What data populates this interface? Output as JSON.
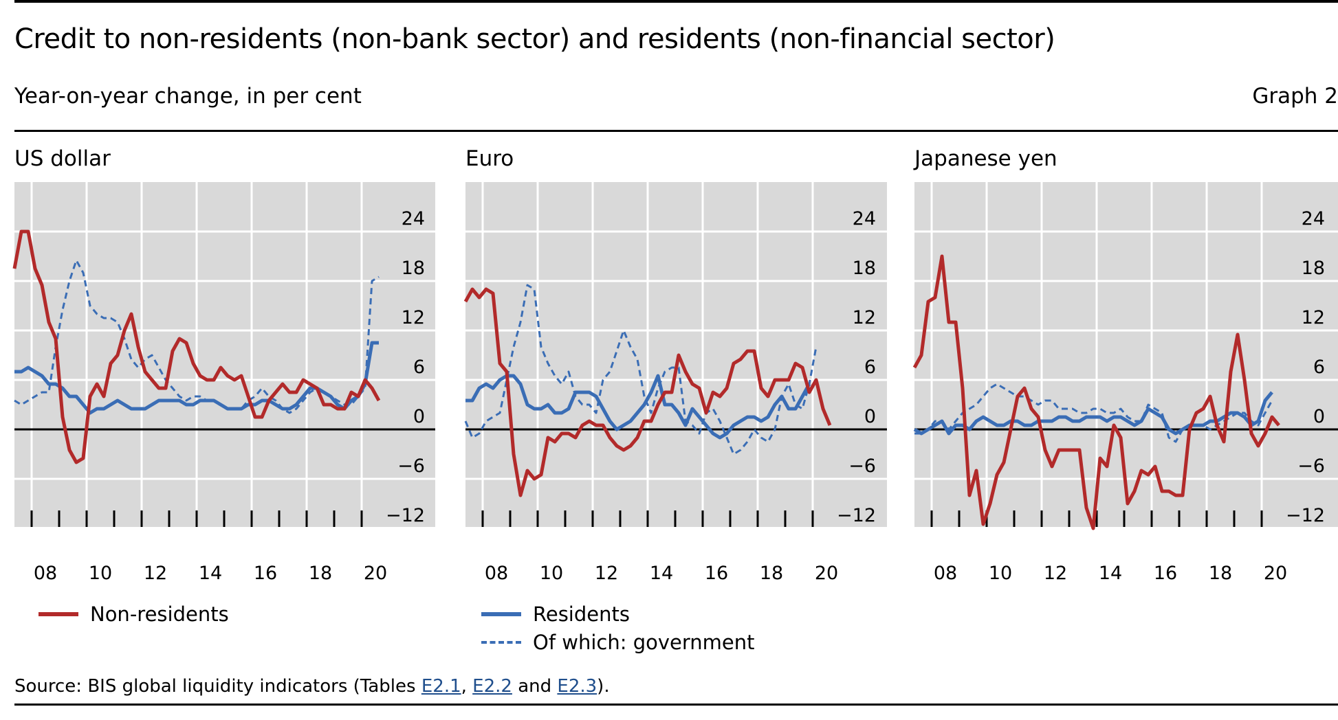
{
  "header": {
    "title": "Credit to non-residents (non-bank sector) and residents (non-financial sector)",
    "subtitle": "Year-on-year change, in per cent",
    "graph_number": "Graph 2"
  },
  "legend": {
    "non_residents": "Non-residents",
    "residents": "Residents",
    "government": "Of which: government"
  },
  "source": {
    "prefix": "Source: BIS global liquidity indicators (Tables ",
    "link1": "E2.1",
    "sep1": ", ",
    "link2": "E2.2",
    "sep2": " and ",
    "link3": "E2.3",
    "suffix": ")."
  },
  "colors": {
    "non_residents": "#b22a2a",
    "residents": "#3a6db5",
    "panel_background": "#d9d9d9",
    "gridline": "#ffffff"
  },
  "chart_data": [
    {
      "type": "line",
      "title": "US dollar",
      "xlabel": "",
      "ylabel": "Year-on-year change, in per cent",
      "x_start": 2007.375,
      "x_step": 0.25,
      "xlim": [
        2007.375,
        2022.65
      ],
      "ylim": [
        -12,
        30
      ],
      "x_ticks": [
        "08",
        "10",
        "12",
        "14",
        "16",
        "18",
        "20"
      ],
      "y_ticks": [
        24,
        18,
        12,
        6,
        0,
        -6,
        -12
      ],
      "series": [
        {
          "name": "Non-residents",
          "style": "solid",
          "values": [
            19.5,
            24,
            24,
            19.5,
            17.5,
            13,
            11,
            1.5,
            -2.5,
            -4,
            -3.5,
            4,
            5.5,
            4,
            8,
            9,
            12,
            14,
            10,
            7,
            6,
            5,
            5,
            9.5,
            11,
            10.5,
            8,
            6.5,
            6,
            6,
            7.5,
            6.5,
            6,
            6.5,
            4,
            1.5,
            1.5,
            3.5,
            4.5,
            5.5,
            4.5,
            4.5,
            6,
            5.5,
            5,
            3,
            3,
            2.5,
            2.5,
            4.5,
            4,
            6,
            5,
            3.5
          ]
        },
        {
          "name": "Residents",
          "style": "solid",
          "values": [
            7,
            7,
            7.5,
            7,
            6.5,
            5.5,
            5.5,
            5,
            4,
            4,
            3,
            2,
            2.5,
            2.5,
            3,
            3.5,
            3,
            2.5,
            2.5,
            2.5,
            3,
            3.5,
            3.5,
            3.5,
            3.5,
            3,
            3,
            3.5,
            3.5,
            3.5,
            3,
            2.5,
            2.5,
            2.5,
            3,
            3,
            3.5,
            3.5,
            3,
            2.5,
            2.5,
            3,
            4,
            5,
            5,
            4.5,
            4,
            3,
            2.5,
            3.5,
            4,
            5.5,
            10.5,
            10.5
          ]
        },
        {
          "name": "Of which: government",
          "style": "dashed",
          "values": [
            3.5,
            3,
            3.5,
            4,
            4.5,
            4.5,
            10,
            14.5,
            18,
            20.5,
            19,
            15,
            14,
            13.5,
            13.5,
            13,
            11,
            8.5,
            7.5,
            8.5,
            9,
            7.5,
            6,
            5,
            4,
            3.5,
            4,
            4,
            3.5,
            3.5,
            3,
            2.5,
            2.5,
            2.5,
            3.5,
            4,
            5,
            4,
            3.5,
            2.5,
            2,
            2.5,
            3.5,
            4.5,
            5,
            4.5,
            4,
            3.5,
            3,
            3,
            4,
            5,
            18,
            18.5
          ]
        }
      ]
    },
    {
      "type": "line",
      "title": "Euro",
      "xlabel": "",
      "ylabel": "Year-on-year change, in per cent",
      "x_start": 2007.375,
      "x_step": 0.25,
      "xlim": [
        2007.375,
        2022.65
      ],
      "ylim": [
        -12,
        30
      ],
      "x_ticks": [
        "08",
        "10",
        "12",
        "14",
        "16",
        "18",
        "20"
      ],
      "y_ticks": [
        24,
        18,
        12,
        6,
        0,
        -6,
        -12
      ],
      "series": [
        {
          "name": "Non-residents",
          "style": "solid",
          "values": [
            15.5,
            17,
            16,
            17,
            16.5,
            8,
            7,
            -3,
            -8,
            -5,
            -6,
            -5.5,
            -1,
            -1.5,
            -0.5,
            -0.5,
            -1,
            0.5,
            1,
            0.5,
            0.5,
            -1,
            -2,
            -2.5,
            -2,
            -1,
            1,
            1,
            3,
            4.5,
            4.5,
            9,
            7,
            5.5,
            5,
            2,
            4.5,
            4,
            5,
            8,
            8.5,
            9.5,
            9.5,
            5,
            4,
            6,
            6,
            6,
            8,
            7.5,
            4.5,
            6,
            2.5,
            0.5
          ]
        },
        {
          "name": "Residents",
          "style": "solid",
          "values": [
            3.5,
            3.5,
            5,
            5.5,
            5,
            6,
            6.5,
            6.5,
            5.5,
            3,
            2.5,
            2.5,
            3,
            2,
            2,
            2.5,
            4.5,
            4.5,
            4.5,
            4,
            2.5,
            1,
            0,
            0.5,
            1,
            2,
            3,
            4.5,
            6.5,
            3,
            3,
            2,
            0.5,
            2.5,
            1.5,
            0.5,
            -0.5,
            -1,
            -0.5,
            0.5,
            1,
            1.5,
            1.5,
            1,
            1.5,
            3,
            4,
            2.5,
            2.5,
            4,
            5.5
          ]
        },
        {
          "name": "Of which: government",
          "style": "dashed",
          "values": [
            1,
            -1,
            -0.5,
            1,
            1.5,
            2,
            6,
            10,
            13,
            17.5,
            17,
            10,
            8,
            6.5,
            5.5,
            7,
            4,
            3,
            3,
            2,
            6,
            7,
            9.5,
            12,
            10,
            8.5,
            4,
            2,
            5,
            7,
            7.5,
            7.5,
            1,
            0.5,
            -0.5,
            2,
            2.5,
            1,
            -1,
            -3,
            -2.5,
            -1.5,
            0,
            -1,
            -1.5,
            0,
            4,
            5.5,
            3,
            2.5,
            5.5,
            10
          ]
        }
      ]
    },
    {
      "type": "line",
      "title": "Japanese yen",
      "xlabel": "",
      "ylabel": "Year-on-year change, in per cent",
      "x_start": 2007.375,
      "x_step": 0.25,
      "xlim": [
        2007.375,
        2022.65
      ],
      "ylim": [
        -12,
        30
      ],
      "x_ticks": [
        "08",
        "10",
        "12",
        "14",
        "16",
        "18",
        "20"
      ],
      "y_ticks": [
        24,
        18,
        12,
        6,
        0,
        -6,
        -12
      ],
      "series": [
        {
          "name": "Non-residents",
          "style": "solid",
          "values": [
            7.5,
            9,
            15.5,
            16,
            21,
            13,
            13,
            5,
            -8,
            -5,
            -11.5,
            -9,
            -5.5,
            -4,
            0,
            4,
            5,
            2.5,
            1.5,
            -2.5,
            -4.5,
            -2.5,
            -2.5,
            -2.5,
            -2.5,
            -9.5,
            -12,
            -3.5,
            -4.5,
            0.5,
            -1,
            -9,
            -7.5,
            -5,
            -5.5,
            -4.5,
            -7.5,
            -7.5,
            -8,
            -8,
            0,
            2,
            2.5,
            4,
            0.5,
            -1.5,
            7,
            11.5,
            6,
            -0.5,
            -2,
            -0.5,
            1.5,
            0.5
          ]
        },
        {
          "name": "Residents",
          "style": "solid",
          "values": [
            0,
            -0.5,
            0,
            0.5,
            1,
            -0.5,
            0.5,
            0.5,
            0,
            1,
            1.5,
            1,
            0.5,
            0.5,
            1,
            1,
            0.5,
            0.5,
            1,
            1,
            1,
            1.5,
            1.5,
            1,
            1,
            1.5,
            1.5,
            1.5,
            1,
            1.5,
            1.5,
            1,
            0.5,
            1,
            2.5,
            2,
            1.5,
            0,
            -0.5,
            0,
            0.5,
            0.5,
            0.5,
            1,
            1,
            1.5,
            2,
            2,
            1.5,
            0.5,
            1,
            3.5,
            4.5
          ]
        },
        {
          "name": "Of which: government",
          "style": "dashed",
          "values": [
            -0.5,
            -0.5,
            0,
            1,
            1,
            0,
            1,
            2,
            2.5,
            3,
            4,
            5,
            5.5,
            5,
            4.5,
            4,
            4,
            3.5,
            3,
            3.5,
            3.5,
            2.5,
            2.5,
            2.5,
            2,
            2,
            2.5,
            2.5,
            2,
            2,
            2.5,
            1.5,
            1,
            1,
            3,
            2.5,
            2,
            -1,
            -1.5,
            0,
            0.5,
            0.5,
            0.5,
            0,
            0.5,
            1,
            1.5,
            2,
            2,
            1,
            0.5,
            2,
            3.5
          ]
        }
      ]
    }
  ]
}
